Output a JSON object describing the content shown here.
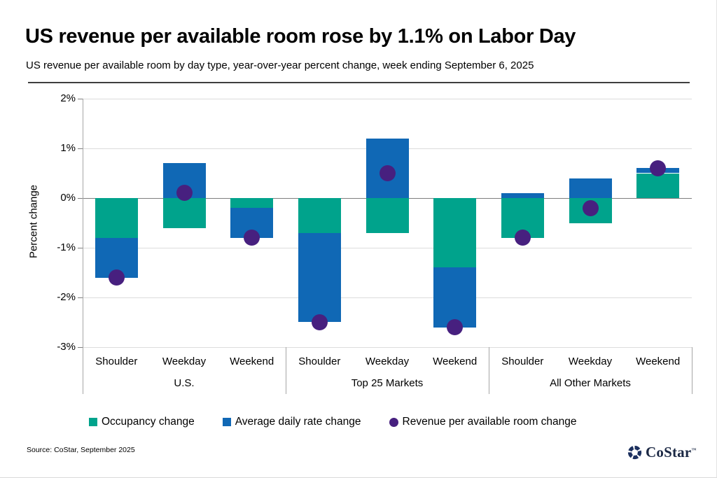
{
  "header": {
    "title": "US revenue per available room rose by 1.1% on Labor Day",
    "subtitle": "US revenue per available room by day type, year-over-year percent change, week ending September 6, 2025"
  },
  "chart_data": {
    "type": "bar",
    "subtype": "stacked-bars-with-point-markers",
    "title": "US revenue per available room rose by 1.1% on Labor Day",
    "ylabel": "Percent change",
    "ylim": [
      -3,
      2
    ],
    "ytick_labels": [
      "2%",
      "1%",
      "0%",
      "-1%",
      "-2%",
      "-3%"
    ],
    "ytick_values": [
      2,
      1,
      0,
      -1,
      -2,
      -3
    ],
    "grid": "horizontal",
    "legend_position": "bottom",
    "colors": {
      "occupancy": "#00A38C",
      "adr": "#1068B5",
      "revpar": "#47207F"
    },
    "series_names": {
      "occupancy": "Occupancy change",
      "adr": "Average daily rate change",
      "revpar": "Revenue per available room change"
    },
    "groups": [
      {
        "label": "U.S.",
        "categories": [
          "Shoulder",
          "Weekday",
          "Weekend"
        ],
        "occupancy_change": [
          -0.8,
          -0.6,
          -0.2
        ],
        "adr_change": [
          -0.8,
          0.7,
          -0.6
        ],
        "revpar_change": [
          -1.6,
          0.1,
          -0.8
        ]
      },
      {
        "label": "Top 25 Markets",
        "categories": [
          "Shoulder",
          "Weekday",
          "Weekend"
        ],
        "occupancy_change": [
          -0.7,
          -0.7,
          -1.4
        ],
        "adr_change": [
          -1.8,
          1.2,
          -1.2
        ],
        "revpar_change": [
          -2.5,
          0.5,
          -2.6
        ]
      },
      {
        "label": "All Other Markets",
        "categories": [
          "Shoulder",
          "Weekday",
          "Weekend"
        ],
        "occupancy_change": [
          -0.8,
          -0.5,
          0.5
        ],
        "adr_change": [
          0.1,
          0.4,
          0.1
        ],
        "revpar_change": [
          -0.8,
          -0.2,
          0.6
        ]
      }
    ]
  },
  "legend": {
    "items": [
      {
        "label": "Occupancy change",
        "marker": "square",
        "color": "#00A38C"
      },
      {
        "label": "Average daily rate change",
        "marker": "square",
        "color": "#1068B5"
      },
      {
        "label": "Revenue per available room change",
        "marker": "circle",
        "color": "#47207F"
      }
    ]
  },
  "footer": {
    "source": "Source: CoStar, September 2025",
    "logo_text": "CoStar",
    "logo_tm": "™"
  }
}
